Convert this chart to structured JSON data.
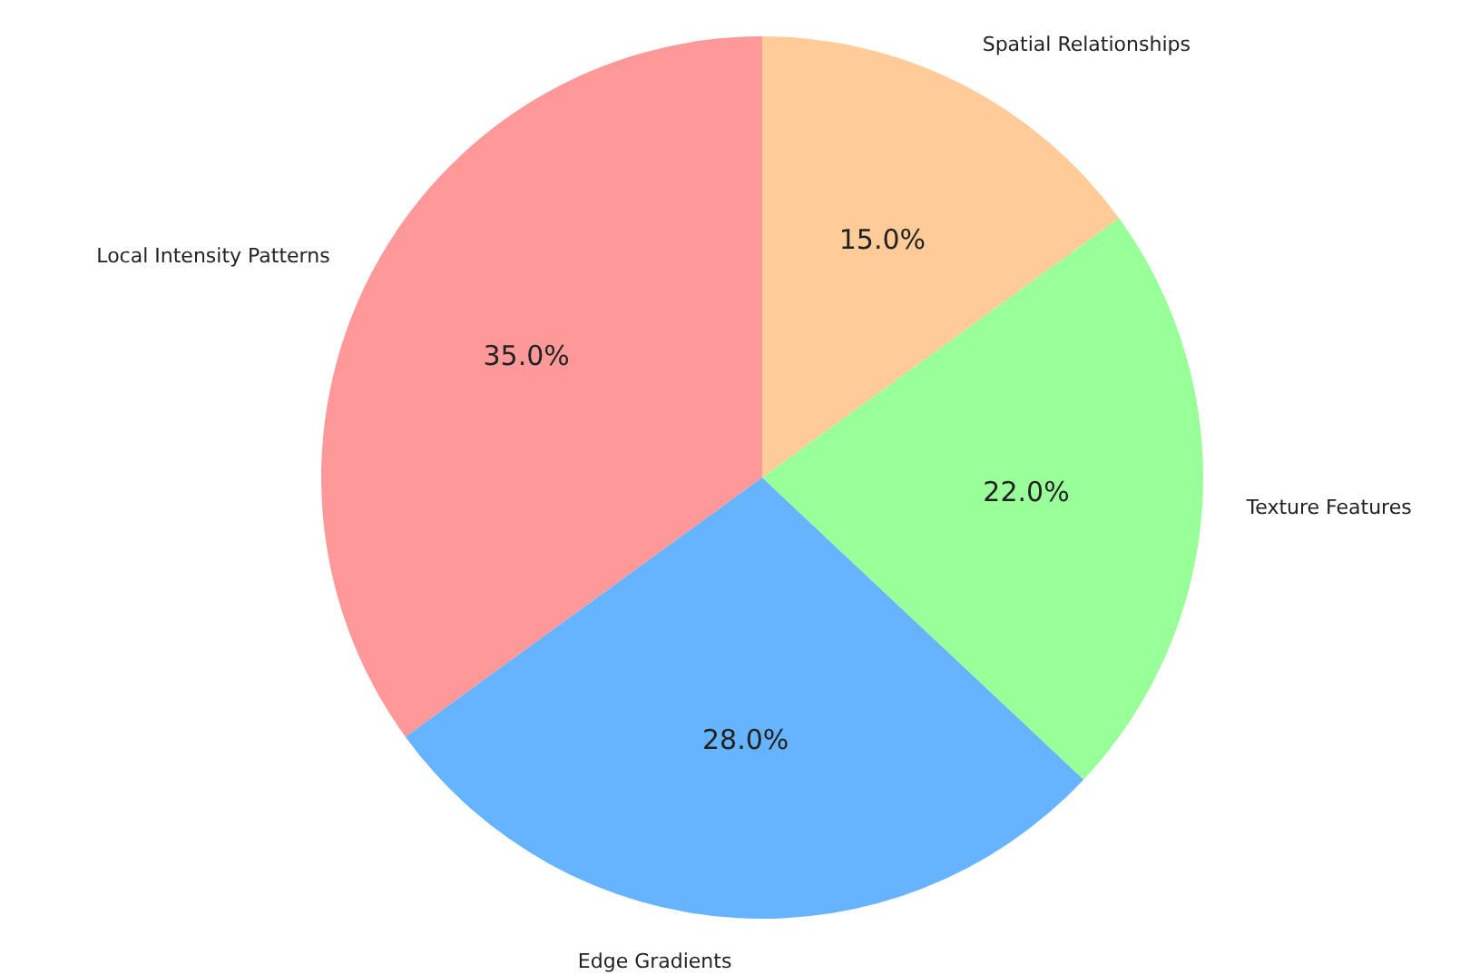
{
  "chart_data": {
    "type": "pie",
    "categories": [
      "Local Intensity Patterns",
      "Edge Gradients",
      "Texture Features",
      "Spatial Relationships"
    ],
    "values": [
      35,
      28,
      22,
      15
    ],
    "colors": [
      "#ff9999",
      "#66b3ff",
      "#99ff99",
      "#ffcc99"
    ],
    "value_labels": [
      "35.0%",
      "28.0%",
      "22.0%",
      "15.0%"
    ]
  }
}
